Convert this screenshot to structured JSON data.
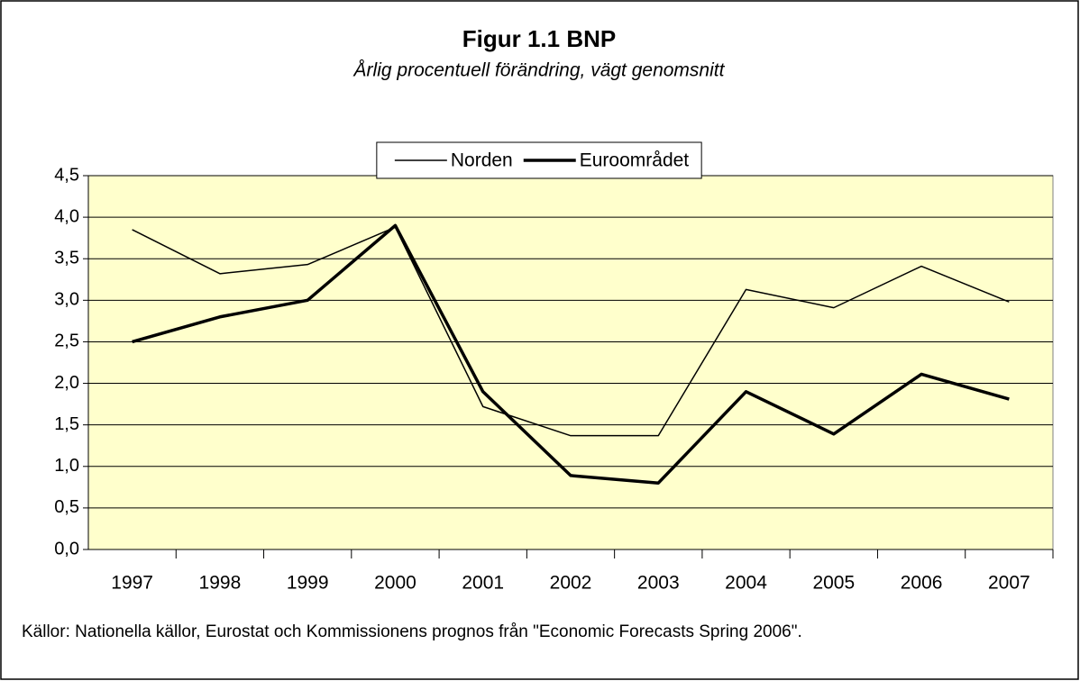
{
  "chart_data": {
    "type": "line",
    "title": "Figur 1.1 BNP",
    "subtitle": "Årlig procentuell förändring, vägt genomsnitt",
    "categories": [
      "1997",
      "1998",
      "1999",
      "2000",
      "2001",
      "2002",
      "2003",
      "2004",
      "2005",
      "2006",
      "2007"
    ],
    "series": [
      {
        "name": "Norden",
        "color": "#000000",
        "line_width": 1.5,
        "values": [
          3.85,
          3.32,
          3.43,
          3.88,
          1.72,
          1.37,
          1.37,
          3.13,
          2.91,
          3.41,
          2.98
        ]
      },
      {
        "name": "Euroområdet",
        "color": "#000000",
        "line_width": 3.5,
        "values": [
          2.5,
          2.8,
          3.0,
          3.9,
          1.9,
          0.89,
          0.8,
          1.9,
          1.39,
          2.11,
          1.81
        ]
      }
    ],
    "ylim": [
      0,
      4.5
    ],
    "yticks": [
      {
        "value": 0,
        "label": "0,0"
      },
      {
        "value": 0.5,
        "label": "0,5"
      },
      {
        "value": 1,
        "label": "1,0"
      },
      {
        "value": 1.5,
        "label": "1,5"
      },
      {
        "value": 2,
        "label": "2,0"
      },
      {
        "value": 2.5,
        "label": "2,5"
      },
      {
        "value": 3,
        "label": "3,0"
      },
      {
        "value": 3.5,
        "label": "3,5"
      },
      {
        "value": 4,
        "label": "4,0"
      },
      {
        "value": 4.5,
        "label": "4,5"
      }
    ],
    "grid": true,
    "plot_background": "#ffffcc",
    "legend": "top",
    "note": "Källor: Nationella källor, Eurostat och Kommissionens prognos från \"Economic Forecasts Spring 2006\"."
  }
}
